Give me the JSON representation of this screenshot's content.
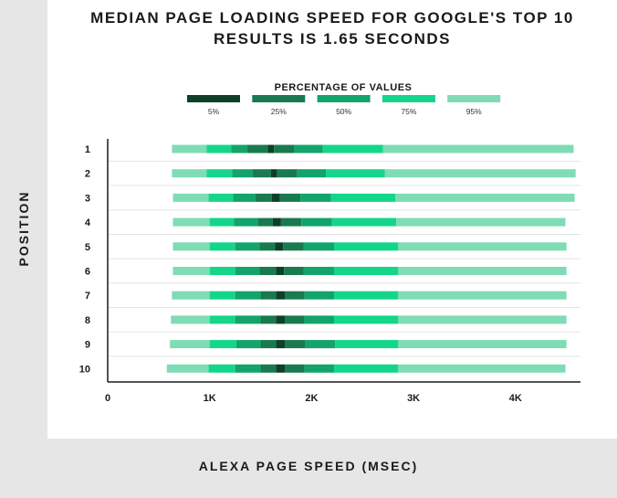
{
  "chart_data": {
    "type": "bar",
    "subtype": "percentile-range-bars",
    "title_lines": [
      "MEDIAN PAGE LOADING SPEED FOR GOOGLE'S TOP 10",
      "RESULTS IS 1.65 SECONDS"
    ],
    "xlabel": "ALEXA PAGE SPEED (MSEC)",
    "ylabel": "POSITION",
    "legend_title": "PERCENTAGE OF VALUES",
    "legend_position": "top-center",
    "legend": [
      {
        "label": "5%",
        "color": "#0e3f2a"
      },
      {
        "label": "25%",
        "color": "#1a7a4f"
      },
      {
        "label": "50%",
        "color": "#13a46b"
      },
      {
        "label": "75%",
        "color": "#14d68a"
      },
      {
        "label": "95%",
        "color": "#7fdcb4"
      }
    ],
    "x_ticks": [
      {
        "value": 0,
        "label": "0"
      },
      {
        "value": 1000,
        "label": "1K"
      },
      {
        "value": 2000,
        "label": "2K"
      },
      {
        "value": 3000,
        "label": "3K"
      },
      {
        "value": 4000,
        "label": "4K"
      }
    ],
    "xlim": [
      0,
      4750
    ],
    "grid": "horizontal",
    "rows": [
      {
        "position": "1",
        "p2_5": 630,
        "p12_5": 970,
        "p25": 1210,
        "p37_5": 1370,
        "p47_5": 1570,
        "p52_5": 1630,
        "p62_5": 1830,
        "p75": 2110,
        "p87_5": 2700,
        "p97_5": 4570
      },
      {
        "position": "2",
        "p2_5": 630,
        "p12_5": 970,
        "p25": 1220,
        "p37_5": 1420,
        "p47_5": 1600,
        "p52_5": 1660,
        "p62_5": 1860,
        "p75": 2140,
        "p87_5": 2720,
        "p97_5": 4590
      },
      {
        "position": "3",
        "p2_5": 640,
        "p12_5": 990,
        "p25": 1230,
        "p37_5": 1450,
        "p47_5": 1610,
        "p52_5": 1690,
        "p62_5": 1890,
        "p75": 2190,
        "p87_5": 2820,
        "p97_5": 4580
      },
      {
        "position": "4",
        "p2_5": 640,
        "p12_5": 1000,
        "p25": 1240,
        "p37_5": 1470,
        "p47_5": 1620,
        "p52_5": 1700,
        "p62_5": 1900,
        "p75": 2200,
        "p87_5": 2830,
        "p97_5": 4490
      },
      {
        "position": "5",
        "p2_5": 640,
        "p12_5": 1000,
        "p25": 1250,
        "p37_5": 1490,
        "p47_5": 1640,
        "p52_5": 1720,
        "p62_5": 1920,
        "p75": 2220,
        "p87_5": 2850,
        "p97_5": 4500
      },
      {
        "position": "6",
        "p2_5": 640,
        "p12_5": 1000,
        "p25": 1250,
        "p37_5": 1490,
        "p47_5": 1650,
        "p52_5": 1730,
        "p62_5": 1920,
        "p75": 2220,
        "p87_5": 2850,
        "p97_5": 4500
      },
      {
        "position": "7",
        "p2_5": 630,
        "p12_5": 1000,
        "p25": 1250,
        "p37_5": 1500,
        "p47_5": 1650,
        "p52_5": 1740,
        "p62_5": 1930,
        "p75": 2220,
        "p87_5": 2850,
        "p97_5": 4500
      },
      {
        "position": "8",
        "p2_5": 620,
        "p12_5": 1000,
        "p25": 1250,
        "p37_5": 1500,
        "p47_5": 1650,
        "p52_5": 1740,
        "p62_5": 1930,
        "p75": 2220,
        "p87_5": 2850,
        "p97_5": 4500
      },
      {
        "position": "9",
        "p2_5": 610,
        "p12_5": 1000,
        "p25": 1260,
        "p37_5": 1500,
        "p47_5": 1650,
        "p52_5": 1740,
        "p62_5": 1940,
        "p75": 2230,
        "p87_5": 2850,
        "p97_5": 4500
      },
      {
        "position": "10",
        "p2_5": 580,
        "p12_5": 990,
        "p25": 1250,
        "p37_5": 1500,
        "p47_5": 1650,
        "p52_5": 1740,
        "p62_5": 1930,
        "p75": 2220,
        "p87_5": 2850,
        "p97_5": 4490
      }
    ]
  }
}
